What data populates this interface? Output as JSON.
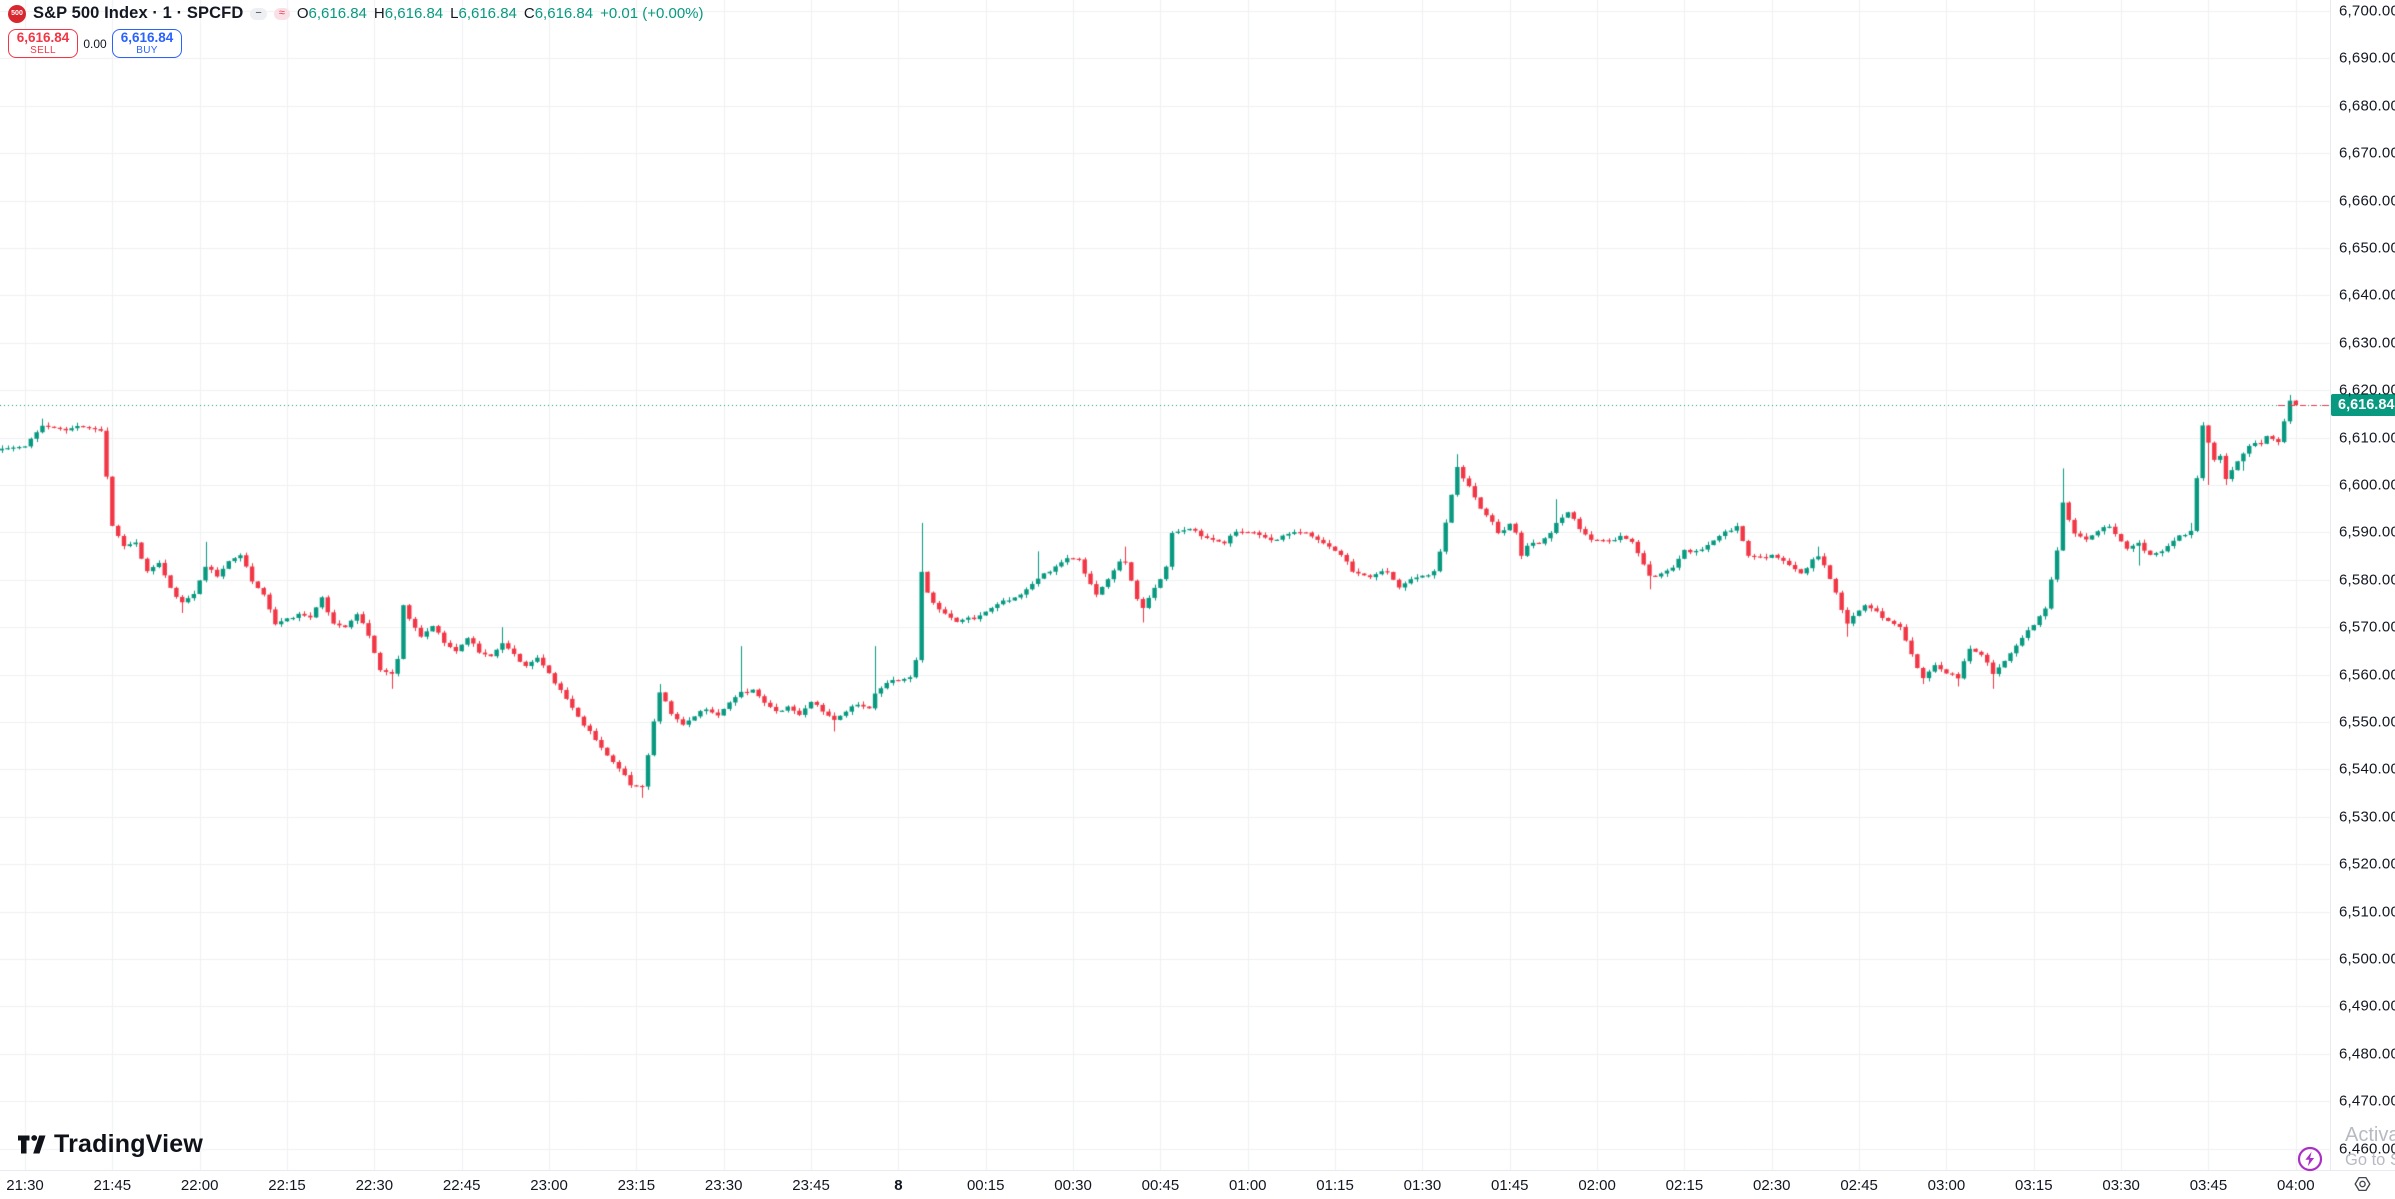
{
  "header": {
    "symbol_logo_text": "500",
    "title": "S&P 500 Index · 1 · SPCFD",
    "status_icons": {
      "icon1": "−",
      "icon2": "≈"
    },
    "ohlc": {
      "o_label": "O",
      "o": "6,616.84",
      "h_label": "H",
      "h": "6,616.84",
      "l_label": "L",
      "l": "6,616.84",
      "c_label": "C",
      "c": "6,616.84",
      "change": "+0.01 (+0.00%)"
    }
  },
  "trade_panel": {
    "sell_price": "6,616.84",
    "sell_label": "SELL",
    "spread": "0.00",
    "buy_price": "6,616.84",
    "buy_label": "BUY"
  },
  "watermark": {
    "logo_text": "TradingView"
  },
  "promo": {
    "line1": "Activa",
    "line2": "Go to S"
  },
  "price_axis": {
    "current_price_label": "6,616.84"
  },
  "colors": {
    "up": "#089981",
    "down": "#F23645",
    "sell": "#F23645",
    "buy": "#2962FF",
    "grid": "#F0F1F4",
    "axis_text": "#131722",
    "current_line": "#089981",
    "badge_bg": "#089981",
    "watermark_gray": "#B7BAC3",
    "promo_purple": "#A92FC5"
  },
  "chart_data": {
    "type": "candlestick",
    "title": "S&P 500 Index",
    "interval": "1",
    "exchange": "SPCFD",
    "current_price": 6616.84,
    "y_domain": [
      6460,
      6700
    ],
    "price_ticks": [
      6700,
      6690,
      6680,
      6670,
      6660,
      6650,
      6640,
      6630,
      6620,
      6610,
      6600,
      6590,
      6580,
      6570,
      6560,
      6550,
      6540,
      6530,
      6520,
      6510,
      6500,
      6490,
      6480,
      6470,
      6460
    ],
    "time_ticks": [
      "21:30",
      "21:45",
      "22:00",
      "22:15",
      "22:30",
      "22:45",
      "23:00",
      "23:15",
      "23:30",
      "23:45",
      "8",
      "00:15",
      "00:30",
      "00:45",
      "01:00",
      "01:15",
      "01:30",
      "01:45",
      "02:00",
      "02:15",
      "02:30",
      "02:45",
      "03:00",
      "03:15",
      "03:30",
      "03:45",
      "04:00"
    ],
    "midnight_tick_index": 10,
    "minutes_total": 390,
    "keypoints": [
      [
        0,
        6608.5
      ],
      [
        1,
        6610
      ],
      [
        3,
        6612.5
      ],
      [
        6,
        6611.5
      ],
      [
        9,
        6612.5
      ],
      [
        12,
        6611.5
      ],
      [
        13,
        6611.8
      ],
      [
        14,
        6602
      ],
      [
        15,
        6591.5
      ],
      [
        17,
        6587
      ],
      [
        19,
        6587.5
      ],
      [
        21,
        6582
      ],
      [
        23,
        6583.5
      ],
      [
        25,
        6578
      ],
      [
        27,
        6575.5
      ],
      [
        29,
        6577
      ],
      [
        31,
        6582.5
      ],
      [
        33,
        6581
      ],
      [
        35,
        6584
      ],
      [
        37,
        6585
      ],
      [
        39,
        6580
      ],
      [
        41,
        6577
      ],
      [
        43,
        6570.5
      ],
      [
        45,
        6571.5
      ],
      [
        47,
        6573
      ],
      [
        49,
        6572
      ],
      [
        51,
        6576
      ],
      [
        53,
        6571
      ],
      [
        55,
        6570
      ],
      [
        57,
        6572.5
      ],
      [
        59,
        6568.5
      ],
      [
        61,
        6561
      ],
      [
        63,
        6560
      ],
      [
        64,
        6563
      ],
      [
        65,
        6575
      ],
      [
        66,
        6572
      ],
      [
        68,
        6568
      ],
      [
        70,
        6570
      ],
      [
        72,
        6567
      ],
      [
        74,
        6565
      ],
      [
        76,
        6567.5
      ],
      [
        78,
        6565
      ],
      [
        80,
        6564
      ],
      [
        82,
        6566.5
      ],
      [
        84,
        6564
      ],
      [
        86,
        6562
      ],
      [
        88,
        6563.5
      ],
      [
        90,
        6560
      ],
      [
        92,
        6557
      ],
      [
        94,
        6553
      ],
      [
        96,
        6549
      ],
      [
        98,
        6546.5
      ],
      [
        100,
        6543
      ],
      [
        102,
        6540
      ],
      [
        104,
        6537
      ],
      [
        106,
        6536.5
      ],
      [
        107,
        6543
      ],
      [
        108,
        6550
      ],
      [
        109,
        6556
      ],
      [
        111,
        6552
      ],
      [
        113,
        6549.5
      ],
      [
        115,
        6551
      ],
      [
        117,
        6553
      ],
      [
        119,
        6551.5
      ],
      [
        121,
        6554
      ],
      [
        123,
        6556
      ],
      [
        125,
        6557
      ],
      [
        127,
        6554
      ],
      [
        129,
        6552
      ],
      [
        131,
        6553.5
      ],
      [
        133,
        6551.5
      ],
      [
        135,
        6554
      ],
      [
        137,
        6552.5
      ],
      [
        139,
        6550.5
      ],
      [
        141,
        6552
      ],
      [
        143,
        6554
      ],
      [
        145,
        6553
      ],
      [
        146,
        6556
      ],
      [
        148,
        6558
      ],
      [
        150,
        6559
      ],
      [
        152,
        6559.5
      ],
      [
        153,
        6563
      ],
      [
        154,
        6581.5
      ],
      [
        155,
        6577
      ],
      [
        157,
        6574
      ],
      [
        160,
        6571
      ],
      [
        163,
        6572
      ],
      [
        166,
        6574
      ],
      [
        169,
        6576
      ],
      [
        171,
        6577
      ],
      [
        174,
        6580
      ],
      [
        177,
        6583
      ],
      [
        179,
        6584.5
      ],
      [
        181,
        6584
      ],
      [
        184,
        6577
      ],
      [
        186,
        6580
      ],
      [
        188,
        6583.5
      ],
      [
        189,
        6584
      ],
      [
        191,
        6576
      ],
      [
        192,
        6574
      ],
      [
        194,
        6578
      ],
      [
        196,
        6583
      ],
      [
        197,
        6590
      ],
      [
        200,
        6590.5
      ],
      [
        203,
        6589
      ],
      [
        206,
        6587.5
      ],
      [
        208,
        6590.5
      ],
      [
        211,
        6590
      ],
      [
        214,
        6588
      ],
      [
        216,
        6589.5
      ],
      [
        218,
        6590
      ],
      [
        221,
        6589.5
      ],
      [
        224,
        6587
      ],
      [
        226,
        6585
      ],
      [
        228,
        6582
      ],
      [
        231,
        6580.5
      ],
      [
        234,
        6582
      ],
      [
        236,
        6578.5
      ],
      [
        238,
        6580
      ],
      [
        240,
        6580.5
      ],
      [
        242,
        6582
      ],
      [
        243,
        6586
      ],
      [
        244,
        6592
      ],
      [
        246,
        6603.5
      ],
      [
        248,
        6600
      ],
      [
        250,
        6595
      ],
      [
        252,
        6592
      ],
      [
        253,
        6589.5
      ],
      [
        255,
        6592
      ],
      [
        256,
        6590
      ],
      [
        257,
        6585
      ],
      [
        258,
        6587
      ],
      [
        260,
        6588
      ],
      [
        262,
        6590
      ],
      [
        263,
        6592
      ],
      [
        265,
        6594
      ],
      [
        267,
        6591
      ],
      [
        269,
        6588.5
      ],
      [
        272,
        6588
      ],
      [
        274,
        6589.5
      ],
      [
        276,
        6588
      ],
      [
        278,
        6583
      ],
      [
        279,
        6580.5
      ],
      [
        281,
        6581.5
      ],
      [
        283,
        6582.5
      ],
      [
        285,
        6586
      ],
      [
        288,
        6586.5
      ],
      [
        291,
        6589
      ],
      [
        294,
        6591.5
      ],
      [
        296,
        6585
      ],
      [
        298,
        6584.5
      ],
      [
        300,
        6585.5
      ],
      [
        302,
        6584
      ],
      [
        305,
        6581
      ],
      [
        307,
        6584.5
      ],
      [
        308,
        6585
      ],
      [
        309,
        6583
      ],
      [
        311,
        6577
      ],
      [
        313,
        6571
      ],
      [
        314,
        6572.5
      ],
      [
        316,
        6574.5
      ],
      [
        318,
        6573
      ],
      [
        320,
        6571.5
      ],
      [
        322,
        6570
      ],
      [
        324,
        6564
      ],
      [
        326,
        6559.5
      ],
      [
        328,
        6562
      ],
      [
        330,
        6560
      ],
      [
        332,
        6559.5
      ],
      [
        333,
        6563
      ],
      [
        334,
        6565.5
      ],
      [
        336,
        6564
      ],
      [
        338,
        6560.5
      ],
      [
        340,
        6563
      ],
      [
        342,
        6566
      ],
      [
        344,
        6569
      ],
      [
        346,
        6572.5
      ],
      [
        347,
        6574
      ],
      [
        349,
        6586
      ],
      [
        350,
        6596
      ],
      [
        352,
        6590
      ],
      [
        354,
        6588.5
      ],
      [
        356,
        6590
      ],
      [
        358,
        6591.5
      ],
      [
        361,
        6586.5
      ],
      [
        363,
        6587.5
      ],
      [
        365,
        6585.5
      ],
      [
        367,
        6586
      ],
      [
        370,
        6589
      ],
      [
        372,
        6590.5
      ],
      [
        374,
        6612.5
      ],
      [
        376,
        6605
      ],
      [
        377,
        6606.5
      ],
      [
        378,
        6601.5
      ],
      [
        380,
        6605
      ],
      [
        382,
        6608
      ],
      [
        384,
        6609
      ],
      [
        385,
        6610.5
      ],
      [
        387,
        6609
      ],
      [
        389,
        6617.5
      ],
      [
        390,
        6616.84
      ]
    ],
    "wicks": [
      {
        "m": 3,
        "high": 6614
      },
      {
        "m": 27,
        "low": 6573
      },
      {
        "m": 31,
        "high": 6588
      },
      {
        "m": 63,
        "low": 6557
      },
      {
        "m": 82,
        "high": 6570
      },
      {
        "m": 106,
        "low": 6534
      },
      {
        "m": 109,
        "high": 6558
      },
      {
        "m": 123,
        "high": 6566
      },
      {
        "m": 139,
        "low": 6548
      },
      {
        "m": 146,
        "high": 6566
      },
      {
        "m": 154,
        "high": 6592
      },
      {
        "m": 174,
        "high": 6586
      },
      {
        "m": 189,
        "high": 6587
      },
      {
        "m": 192,
        "low": 6571
      },
      {
        "m": 246,
        "high": 6606.5
      },
      {
        "m": 263,
        "high": 6597
      },
      {
        "m": 279,
        "low": 6578
      },
      {
        "m": 308,
        "high": 6587
      },
      {
        "m": 313,
        "low": 6568
      },
      {
        "m": 326,
        "low": 6558
      },
      {
        "m": 332,
        "low": 6557.5
      },
      {
        "m": 338,
        "low": 6557
      },
      {
        "m": 350,
        "high": 6603.5
      },
      {
        "m": 363,
        "low": 6583
      },
      {
        "m": 372,
        "high": 6592
      },
      {
        "m": 375,
        "low": 6600
      },
      {
        "m": 378,
        "low": 6600
      },
      {
        "m": 381,
        "low": 6603
      },
      {
        "m": 389,
        "high": 6619
      }
    ]
  }
}
